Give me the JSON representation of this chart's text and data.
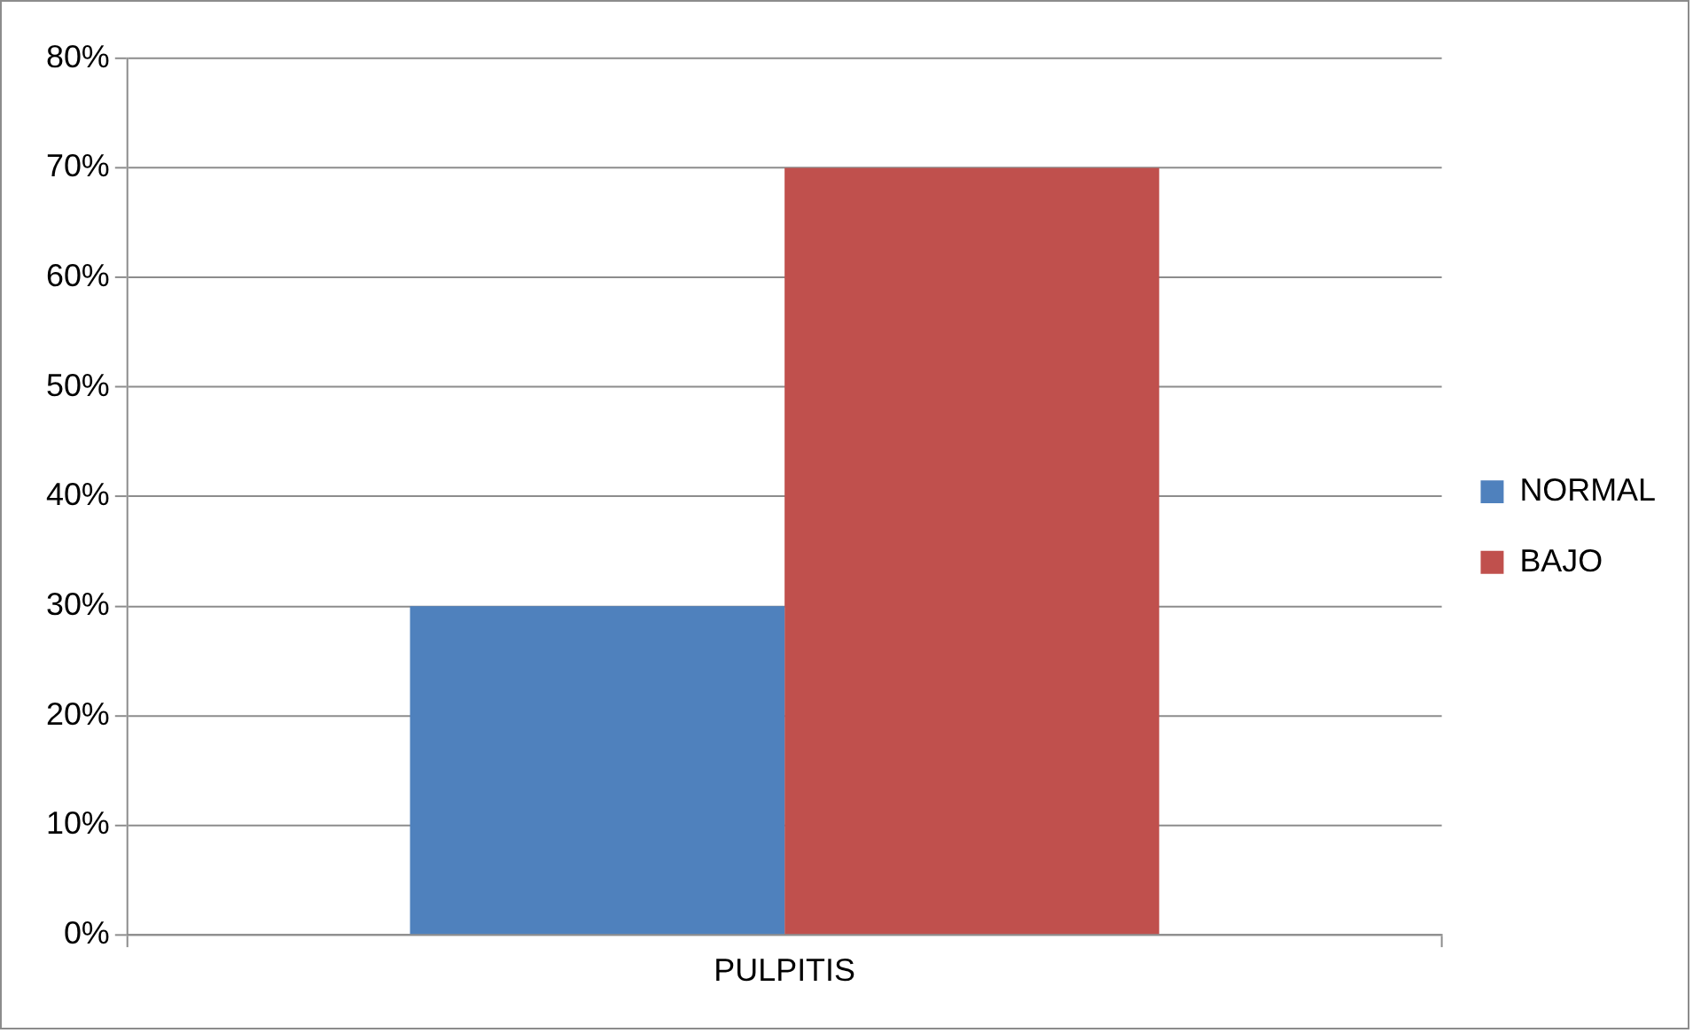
{
  "chart_data": {
    "type": "bar",
    "categories": [
      "PULPITIS"
    ],
    "series": [
      {
        "name": "NORMAL",
        "color": "#4f81bd",
        "values": [
          30
        ]
      },
      {
        "name": "BAJO",
        "color": "#c0504d",
        "values": [
          70
        ]
      }
    ],
    "ylim": [
      0,
      80
    ],
    "yticks": [
      {
        "value": 0,
        "label": "0%"
      },
      {
        "value": 10,
        "label": "10%"
      },
      {
        "value": 20,
        "label": "20%"
      },
      {
        "value": 30,
        "label": "30%"
      },
      {
        "value": 40,
        "label": "40%"
      },
      {
        "value": 50,
        "label": "50%"
      },
      {
        "value": 60,
        "label": "60%"
      },
      {
        "value": 70,
        "label": "70%"
      },
      {
        "value": 80,
        "label": "80%"
      }
    ],
    "grid": "y",
    "legend": "right"
  }
}
